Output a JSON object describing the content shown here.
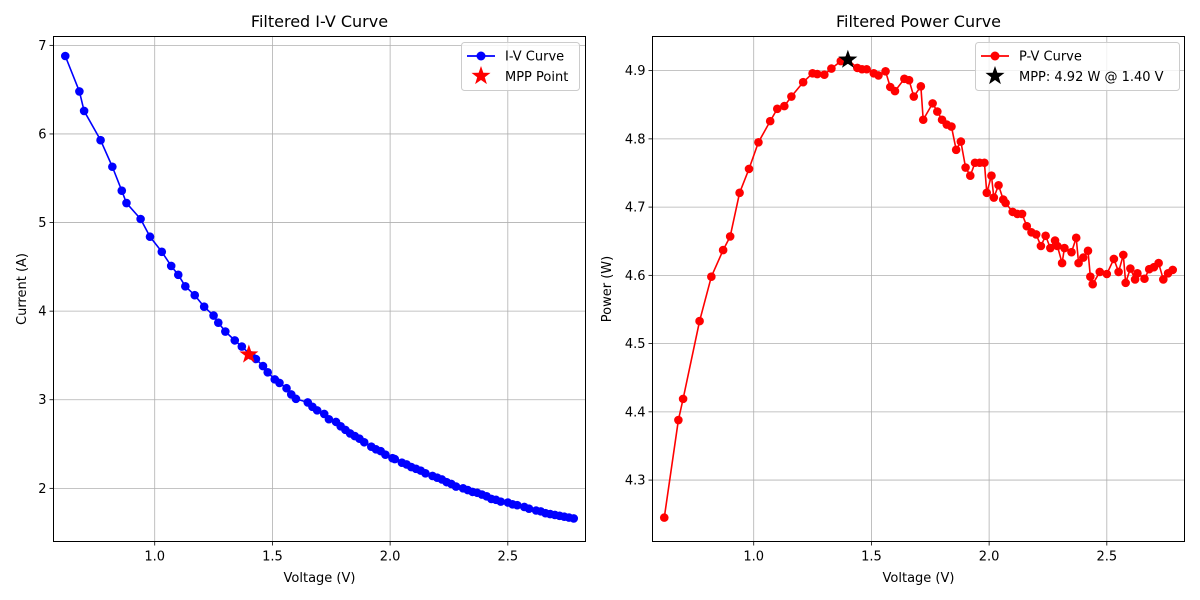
{
  "chart_data": [
    {
      "type": "line",
      "title": "Filtered I-V Curve",
      "xlabel": "Voltage (V)",
      "ylabel": "Current (A)",
      "xlim": [
        0.57,
        2.83
      ],
      "ylim": [
        1.4,
        7.1
      ],
      "xticks": [
        1.0,
        1.5,
        2.0,
        2.5
      ],
      "xtick_labels": [
        "1.0",
        "1.5",
        "2.0",
        "2.5"
      ],
      "yticks": [
        2,
        3,
        4,
        5,
        6,
        7
      ],
      "ytick_labels": [
        "2",
        "3",
        "4",
        "5",
        "6",
        "7"
      ],
      "grid": true,
      "legend": "top-right",
      "series": [
        {
          "name": "I-V Curve",
          "color": "#0000ff",
          "marker": "circle",
          "x": [
            0.62,
            0.68,
            0.7,
            0.77,
            0.82,
            0.86,
            0.88,
            0.94,
            0.98,
            1.03,
            1.07,
            1.1,
            1.13,
            1.17,
            1.21,
            1.25,
            1.27,
            1.3,
            1.34,
            1.37,
            1.41,
            1.43,
            1.46,
            1.48,
            1.51,
            1.53,
            1.56,
            1.58,
            1.6,
            1.65,
            1.67,
            1.69,
            1.72,
            1.74,
            1.77,
            1.79,
            1.81,
            1.83,
            1.85,
            1.87,
            1.89,
            1.92,
            1.94,
            1.96,
            1.98,
            2.01,
            2.02,
            2.05,
            2.07,
            2.09,
            2.11,
            2.13,
            2.15,
            2.18,
            2.2,
            2.22,
            2.24,
            2.26,
            2.28,
            2.31,
            2.33,
            2.35,
            2.37,
            2.39,
            2.41,
            2.43,
            2.45,
            2.47,
            2.5,
            2.52,
            2.54,
            2.57,
            2.59,
            2.62,
            2.64,
            2.66,
            2.68,
            2.7,
            2.72,
            2.74,
            2.76,
            2.78
          ],
          "y": [
            6.88,
            6.48,
            6.26,
            5.93,
            5.63,
            5.36,
            5.22,
            5.04,
            4.84,
            4.67,
            4.51,
            4.41,
            4.28,
            4.18,
            4.05,
            3.95,
            3.87,
            3.77,
            3.67,
            3.6,
            3.5,
            3.46,
            3.38,
            3.31,
            3.23,
            3.19,
            3.13,
            3.06,
            3.01,
            2.97,
            2.92,
            2.88,
            2.84,
            2.78,
            2.75,
            2.7,
            2.66,
            2.62,
            2.59,
            2.56,
            2.52,
            2.47,
            2.44,
            2.42,
            2.38,
            2.34,
            2.33,
            2.29,
            2.27,
            2.24,
            2.22,
            2.2,
            2.17,
            2.14,
            2.12,
            2.1,
            2.07,
            2.05,
            2.02,
            2.0,
            1.98,
            1.96,
            1.95,
            1.93,
            1.91,
            1.88,
            1.87,
            1.85,
            1.84,
            1.82,
            1.81,
            1.79,
            1.77,
            1.75,
            1.74,
            1.72,
            1.71,
            1.7,
            1.69,
            1.68,
            1.67,
            1.66
          ]
        },
        {
          "name": "MPP Point",
          "color": "#ff0000",
          "marker": "star",
          "x": [
            1.4
          ],
          "y": [
            3.51
          ]
        }
      ]
    },
    {
      "type": "line",
      "title": "Filtered Power Curve",
      "xlabel": "Voltage (V)",
      "ylabel": "Power (W)",
      "xlim": [
        0.57,
        2.83
      ],
      "ylim": [
        4.21,
        4.95
      ],
      "xticks": [
        1.0,
        1.5,
        2.0,
        2.5
      ],
      "xtick_labels": [
        "1.0",
        "1.5",
        "2.0",
        "2.5"
      ],
      "yticks": [
        4.3,
        4.4,
        4.5,
        4.6,
        4.7,
        4.8,
        4.9
      ],
      "ytick_labels": [
        "4.3",
        "4.4",
        "4.5",
        "4.6",
        "4.7",
        "4.8",
        "4.9"
      ],
      "grid": true,
      "legend": "top-right",
      "series": [
        {
          "name": "P-V Curve",
          "color": "#ff0000",
          "marker": "circle",
          "x": [
            0.62,
            0.68,
            0.7,
            0.77,
            0.82,
            0.87,
            0.9,
            0.94,
            0.98,
            1.02,
            1.07,
            1.1,
            1.13,
            1.16,
            1.21,
            1.25,
            1.27,
            1.3,
            1.33,
            1.37,
            1.4,
            1.44,
            1.46,
            1.48,
            1.51,
            1.53,
            1.56,
            1.58,
            1.6,
            1.64,
            1.66,
            1.68,
            1.71,
            1.72,
            1.76,
            1.78,
            1.8,
            1.82,
            1.84,
            1.86,
            1.88,
            1.9,
            1.92,
            1.94,
            1.96,
            1.98,
            1.99,
            2.01,
            2.02,
            2.04,
            2.06,
            2.07,
            2.1,
            2.12,
            2.14,
            2.16,
            2.18,
            2.2,
            2.22,
            2.24,
            2.26,
            2.28,
            2.29,
            2.31,
            2.32,
            2.35,
            2.37,
            2.38,
            2.4,
            2.42,
            2.43,
            2.44,
            2.47,
            2.5,
            2.53,
            2.55,
            2.57,
            2.58,
            2.6,
            2.62,
            2.63,
            2.66,
            2.68,
            2.7,
            2.72,
            2.74,
            2.76,
            2.78
          ],
          "y": [
            4.245,
            4.388,
            4.419,
            4.533,
            4.598,
            4.637,
            4.657,
            4.721,
            4.756,
            4.795,
            4.826,
            4.844,
            4.848,
            4.862,
            4.883,
            4.896,
            4.895,
            4.894,
            4.903,
            4.914,
            4.916,
            4.904,
            4.902,
            4.902,
            4.896,
            4.893,
            4.899,
            4.876,
            4.87,
            4.888,
            4.886,
            4.862,
            4.877,
            4.828,
            4.852,
            4.84,
            4.828,
            4.821,
            4.818,
            4.784,
            4.796,
            4.758,
            4.746,
            4.765,
            4.765,
            4.765,
            4.721,
            4.746,
            4.714,
            4.732,
            4.711,
            4.706,
            4.693,
            4.69,
            4.69,
            4.672,
            4.663,
            4.66,
            4.643,
            4.658,
            4.64,
            4.651,
            4.643,
            4.618,
            4.64,
            4.634,
            4.655,
            4.618,
            4.626,
            4.636,
            4.598,
            4.587,
            4.605,
            4.602,
            4.624,
            4.605,
            4.63,
            4.589,
            4.61,
            4.594,
            4.603,
            4.595,
            4.609,
            4.612,
            4.618,
            4.594,
            4.603,
            4.608
          ]
        },
        {
          "name": "MPP: 4.92 W @ 1.40 V",
          "color": "#000000",
          "marker": "star",
          "x": [
            1.4
          ],
          "y": [
            4.916
          ]
        }
      ]
    }
  ]
}
